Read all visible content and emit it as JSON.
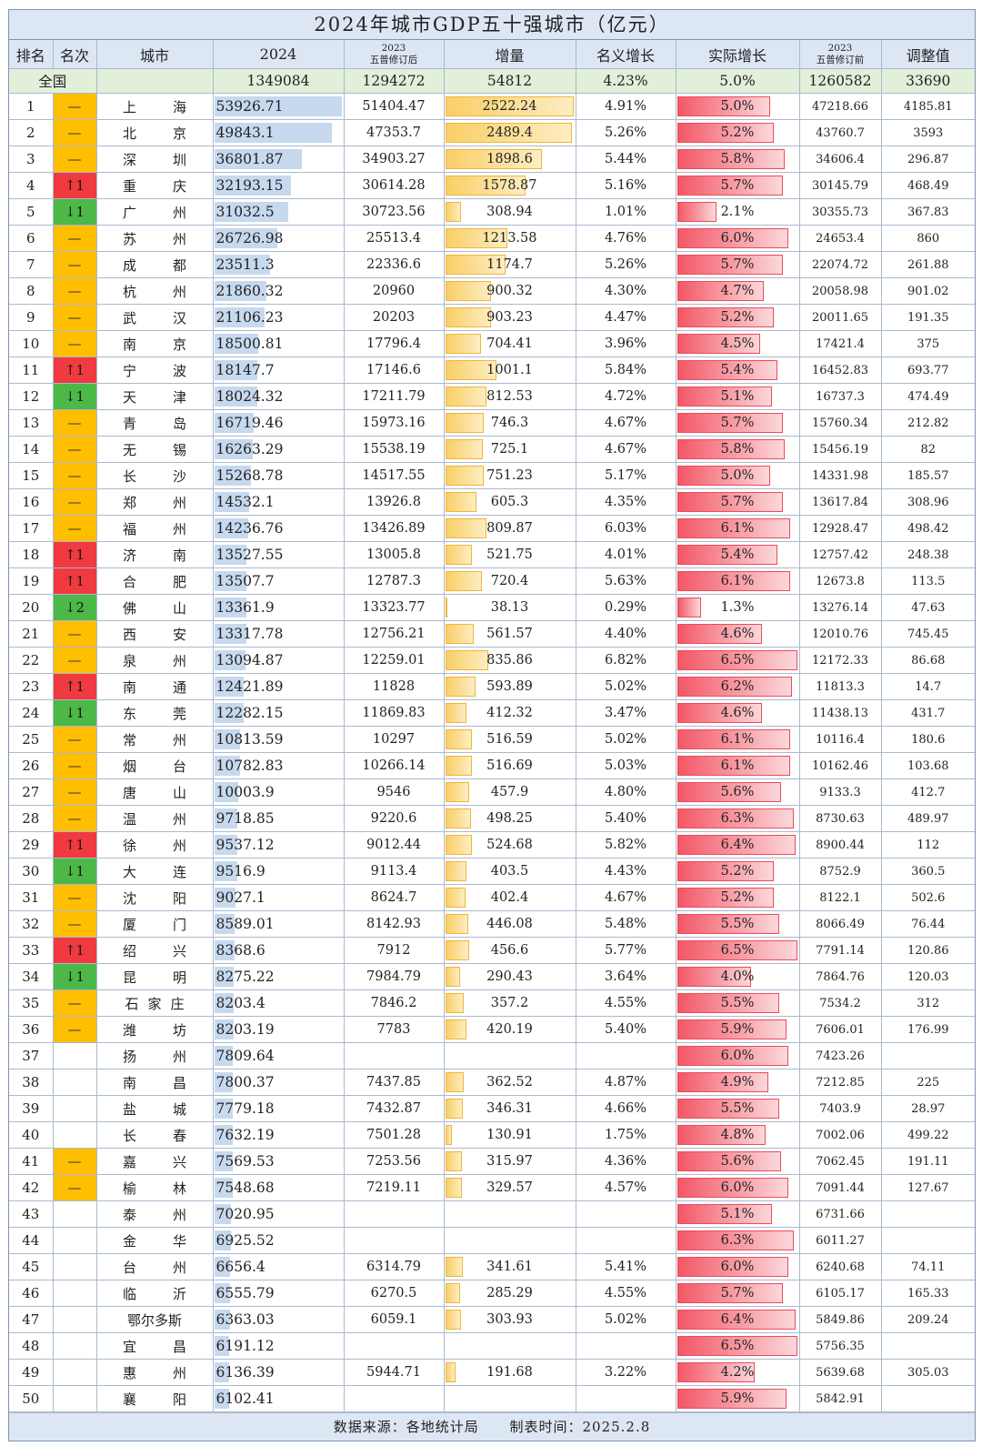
{
  "title": "2024年城市GDP五十强城市（亿元）",
  "headers": {
    "rank": "排名",
    "change": "名次",
    "city": "城市",
    "gdp2024": "2024",
    "rev2023_top": "2023",
    "rev2023_bottom": "五普修订后",
    "increase": "增量",
    "nominal": "名义增长",
    "real": "实际增长",
    "pre2023_top": "2023",
    "pre2023_bottom": "五普修订前",
    "adjust": "调整值"
  },
  "national": {
    "label": "全国",
    "gdp2024": "1349084",
    "rev2023": "1294272",
    "increase": "54812",
    "nominal": "4.23%",
    "real": "5.0%",
    "pre2023": "1260582",
    "adjust": "33690"
  },
  "colors": {
    "up": "#f03a3f",
    "down": "#4cb848",
    "same": "#ffbe00"
  },
  "rows": [
    {
      "rank": "1",
      "change": "—",
      "dir": "same",
      "city": "上海",
      "gdp2024": "53926.71",
      "rev2023": "51404.47",
      "increase": "2522.24",
      "nominal": "4.91%",
      "real": "5.0%",
      "pre2023": "47218.66",
      "adjust": "4185.81"
    },
    {
      "rank": "2",
      "change": "—",
      "dir": "same",
      "city": "北京",
      "gdp2024": "49843.1",
      "rev2023": "47353.7",
      "increase": "2489.4",
      "nominal": "5.26%",
      "real": "5.2%",
      "pre2023": "43760.7",
      "adjust": "3593"
    },
    {
      "rank": "3",
      "change": "—",
      "dir": "same",
      "city": "深圳",
      "gdp2024": "36801.87",
      "rev2023": "34903.27",
      "increase": "1898.6",
      "nominal": "5.44%",
      "real": "5.8%",
      "pre2023": "34606.4",
      "adjust": "296.87"
    },
    {
      "rank": "4",
      "change": "↑1",
      "dir": "up",
      "city": "重庆",
      "gdp2024": "32193.15",
      "rev2023": "30614.28",
      "increase": "1578.87",
      "nominal": "5.16%",
      "real": "5.7%",
      "pre2023": "30145.79",
      "adjust": "468.49"
    },
    {
      "rank": "5",
      "change": "↓1",
      "dir": "down",
      "city": "广州",
      "gdp2024": "31032.5",
      "rev2023": "30723.56",
      "increase": "308.94",
      "nominal": "1.01%",
      "real": "2.1%",
      "pre2023": "30355.73",
      "adjust": "367.83"
    },
    {
      "rank": "6",
      "change": "—",
      "dir": "same",
      "city": "苏州",
      "gdp2024": "26726.98",
      "rev2023": "25513.4",
      "increase": "1213.58",
      "nominal": "4.76%",
      "real": "6.0%",
      "pre2023": "24653.4",
      "adjust": "860"
    },
    {
      "rank": "7",
      "change": "—",
      "dir": "same",
      "city": "成都",
      "gdp2024": "23511.3",
      "rev2023": "22336.6",
      "increase": "1174.7",
      "nominal": "5.26%",
      "real": "5.7%",
      "pre2023": "22074.72",
      "adjust": "261.88"
    },
    {
      "rank": "8",
      "change": "—",
      "dir": "same",
      "city": "杭州",
      "gdp2024": "21860.32",
      "rev2023": "20960",
      "increase": "900.32",
      "nominal": "4.30%",
      "real": "4.7%",
      "pre2023": "20058.98",
      "adjust": "901.02"
    },
    {
      "rank": "9",
      "change": "—",
      "dir": "same",
      "city": "武汉",
      "gdp2024": "21106.23",
      "rev2023": "20203",
      "increase": "903.23",
      "nominal": "4.47%",
      "real": "5.2%",
      "pre2023": "20011.65",
      "adjust": "191.35"
    },
    {
      "rank": "10",
      "change": "—",
      "dir": "same",
      "city": "南京",
      "gdp2024": "18500.81",
      "rev2023": "17796.4",
      "increase": "704.41",
      "nominal": "3.96%",
      "real": "4.5%",
      "pre2023": "17421.4",
      "adjust": "375"
    },
    {
      "rank": "11",
      "change": "↑1",
      "dir": "up",
      "city": "宁波",
      "gdp2024": "18147.7",
      "rev2023": "17146.6",
      "increase": "1001.1",
      "nominal": "5.84%",
      "real": "5.4%",
      "pre2023": "16452.83",
      "adjust": "693.77"
    },
    {
      "rank": "12",
      "change": "↓1",
      "dir": "down",
      "city": "天津",
      "gdp2024": "18024.32",
      "rev2023": "17211.79",
      "increase": "812.53",
      "nominal": "4.72%",
      "real": "5.1%",
      "pre2023": "16737.3",
      "adjust": "474.49"
    },
    {
      "rank": "13",
      "change": "—",
      "dir": "same",
      "city": "青岛",
      "gdp2024": "16719.46",
      "rev2023": "15973.16",
      "increase": "746.3",
      "nominal": "4.67%",
      "real": "5.7%",
      "pre2023": "15760.34",
      "adjust": "212.82"
    },
    {
      "rank": "14",
      "change": "—",
      "dir": "same",
      "city": "无锡",
      "gdp2024": "16263.29",
      "rev2023": "15538.19",
      "increase": "725.1",
      "nominal": "4.67%",
      "real": "5.8%",
      "pre2023": "15456.19",
      "adjust": "82"
    },
    {
      "rank": "15",
      "change": "—",
      "dir": "same",
      "city": "长沙",
      "gdp2024": "15268.78",
      "rev2023": "14517.55",
      "increase": "751.23",
      "nominal": "5.17%",
      "real": "5.0%",
      "pre2023": "14331.98",
      "adjust": "185.57"
    },
    {
      "rank": "16",
      "change": "—",
      "dir": "same",
      "city": "郑州",
      "gdp2024": "14532.1",
      "rev2023": "13926.8",
      "increase": "605.3",
      "nominal": "4.35%",
      "real": "5.7%",
      "pre2023": "13617.84",
      "adjust": "308.96"
    },
    {
      "rank": "17",
      "change": "—",
      "dir": "same",
      "city": "福州",
      "gdp2024": "14236.76",
      "rev2023": "13426.89",
      "increase": "809.87",
      "nominal": "6.03%",
      "real": "6.1%",
      "pre2023": "12928.47",
      "adjust": "498.42"
    },
    {
      "rank": "18",
      "change": "↑1",
      "dir": "up",
      "city": "济南",
      "gdp2024": "13527.55",
      "rev2023": "13005.8",
      "increase": "521.75",
      "nominal": "4.01%",
      "real": "5.4%",
      "pre2023": "12757.42",
      "adjust": "248.38"
    },
    {
      "rank": "19",
      "change": "↑1",
      "dir": "up",
      "city": "合肥",
      "gdp2024": "13507.7",
      "rev2023": "12787.3",
      "increase": "720.4",
      "nominal": "5.63%",
      "real": "6.1%",
      "pre2023": "12673.8",
      "adjust": "113.5"
    },
    {
      "rank": "20",
      "change": "↓2",
      "dir": "down",
      "city": "佛山",
      "gdp2024": "13361.9",
      "rev2023": "13323.77",
      "increase": "38.13",
      "nominal": "0.29%",
      "real": "1.3%",
      "pre2023": "13276.14",
      "adjust": "47.63"
    },
    {
      "rank": "21",
      "change": "—",
      "dir": "same",
      "city": "西安",
      "gdp2024": "13317.78",
      "rev2023": "12756.21",
      "increase": "561.57",
      "nominal": "4.40%",
      "real": "4.6%",
      "pre2023": "12010.76",
      "adjust": "745.45"
    },
    {
      "rank": "22",
      "change": "—",
      "dir": "same",
      "city": "泉州",
      "gdp2024": "13094.87",
      "rev2023": "12259.01",
      "increase": "835.86",
      "nominal": "6.82%",
      "real": "6.5%",
      "pre2023": "12172.33",
      "adjust": "86.68"
    },
    {
      "rank": "23",
      "change": "↑1",
      "dir": "up",
      "city": "南通",
      "gdp2024": "12421.89",
      "rev2023": "11828",
      "increase": "593.89",
      "nominal": "5.02%",
      "real": "6.2%",
      "pre2023": "11813.3",
      "adjust": "14.7"
    },
    {
      "rank": "24",
      "change": "↓1",
      "dir": "down",
      "city": "东莞",
      "gdp2024": "12282.15",
      "rev2023": "11869.83",
      "increase": "412.32",
      "nominal": "3.47%",
      "real": "4.6%",
      "pre2023": "11438.13",
      "adjust": "431.7"
    },
    {
      "rank": "25",
      "change": "—",
      "dir": "same",
      "city": "常州",
      "gdp2024": "10813.59",
      "rev2023": "10297",
      "increase": "516.59",
      "nominal": "5.02%",
      "real": "6.1%",
      "pre2023": "10116.4",
      "adjust": "180.6"
    },
    {
      "rank": "26",
      "change": "—",
      "dir": "same",
      "city": "烟台",
      "gdp2024": "10782.83",
      "rev2023": "10266.14",
      "increase": "516.69",
      "nominal": "5.03%",
      "real": "6.1%",
      "pre2023": "10162.46",
      "adjust": "103.68"
    },
    {
      "rank": "27",
      "change": "—",
      "dir": "same",
      "city": "唐山",
      "gdp2024": "10003.9",
      "rev2023": "9546",
      "increase": "457.9",
      "nominal": "4.80%",
      "real": "5.6%",
      "pre2023": "9133.3",
      "adjust": "412.7"
    },
    {
      "rank": "28",
      "change": "—",
      "dir": "same",
      "city": "温州",
      "gdp2024": "9718.85",
      "rev2023": "9220.6",
      "increase": "498.25",
      "nominal": "5.40%",
      "real": "6.3%",
      "pre2023": "8730.63",
      "adjust": "489.97"
    },
    {
      "rank": "29",
      "change": "↑1",
      "dir": "up",
      "city": "徐州",
      "gdp2024": "9537.12",
      "rev2023": "9012.44",
      "increase": "524.68",
      "nominal": "5.82%",
      "real": "6.4%",
      "pre2023": "8900.44",
      "adjust": "112"
    },
    {
      "rank": "30",
      "change": "↓1",
      "dir": "down",
      "city": "大连",
      "gdp2024": "9516.9",
      "rev2023": "9113.4",
      "increase": "403.5",
      "nominal": "4.43%",
      "real": "5.2%",
      "pre2023": "8752.9",
      "adjust": "360.5"
    },
    {
      "rank": "31",
      "change": "—",
      "dir": "same",
      "city": "沈阳",
      "gdp2024": "9027.1",
      "rev2023": "8624.7",
      "increase": "402.4",
      "nominal": "4.67%",
      "real": "5.2%",
      "pre2023": "8122.1",
      "adjust": "502.6"
    },
    {
      "rank": "32",
      "change": "—",
      "dir": "same",
      "city": "厦门",
      "gdp2024": "8589.01",
      "rev2023": "8142.93",
      "increase": "446.08",
      "nominal": "5.48%",
      "real": "5.5%",
      "pre2023": "8066.49",
      "adjust": "76.44"
    },
    {
      "rank": "33",
      "change": "↑1",
      "dir": "up",
      "city": "绍兴",
      "gdp2024": "8368.6",
      "rev2023": "7912",
      "increase": "456.6",
      "nominal": "5.77%",
      "real": "6.5%",
      "pre2023": "7791.14",
      "adjust": "120.86"
    },
    {
      "rank": "34",
      "change": "↓1",
      "dir": "down",
      "city": "昆明",
      "gdp2024": "8275.22",
      "rev2023": "7984.79",
      "increase": "290.43",
      "nominal": "3.64%",
      "real": "4.0%",
      "pre2023": "7864.76",
      "adjust": "120.03"
    },
    {
      "rank": "35",
      "change": "—",
      "dir": "same",
      "city": "石家庄",
      "gdp2024": "8203.4",
      "rev2023": "7846.2",
      "increase": "357.2",
      "nominal": "4.55%",
      "real": "5.5%",
      "pre2023": "7534.2",
      "adjust": "312"
    },
    {
      "rank": "36",
      "change": "—",
      "dir": "same",
      "city": "潍坊",
      "gdp2024": "8203.19",
      "rev2023": "7783",
      "increase": "420.19",
      "nominal": "5.40%",
      "real": "5.9%",
      "pre2023": "7606.01",
      "adjust": "176.99"
    },
    {
      "rank": "37",
      "change": "",
      "dir": "none",
      "city": "扬州",
      "gdp2024": "7809.64",
      "rev2023": "",
      "increase": "",
      "nominal": "",
      "real": "6.0%",
      "pre2023": "7423.26",
      "adjust": ""
    },
    {
      "rank": "38",
      "change": "",
      "dir": "none",
      "city": "南昌",
      "gdp2024": "7800.37",
      "rev2023": "7437.85",
      "increase": "362.52",
      "nominal": "4.87%",
      "real": "4.9%",
      "pre2023": "7212.85",
      "adjust": "225"
    },
    {
      "rank": "39",
      "change": "",
      "dir": "none",
      "city": "盐城",
      "gdp2024": "7779.18",
      "rev2023": "7432.87",
      "increase": "346.31",
      "nominal": "4.66%",
      "real": "5.5%",
      "pre2023": "7403.9",
      "adjust": "28.97"
    },
    {
      "rank": "40",
      "change": "",
      "dir": "none",
      "city": "长春",
      "gdp2024": "7632.19",
      "rev2023": "7501.28",
      "increase": "130.91",
      "nominal": "1.75%",
      "real": "4.8%",
      "pre2023": "7002.06",
      "adjust": "499.22"
    },
    {
      "rank": "41",
      "change": "—",
      "dir": "same",
      "city": "嘉兴",
      "gdp2024": "7569.53",
      "rev2023": "7253.56",
      "increase": "315.97",
      "nominal": "4.36%",
      "real": "5.6%",
      "pre2023": "7062.45",
      "adjust": "191.11"
    },
    {
      "rank": "42",
      "change": "—",
      "dir": "same",
      "city": "榆林",
      "gdp2024": "7548.68",
      "rev2023": "7219.11",
      "increase": "329.57",
      "nominal": "4.57%",
      "real": "6.0%",
      "pre2023": "7091.44",
      "adjust": "127.67"
    },
    {
      "rank": "43",
      "change": "",
      "dir": "none",
      "city": "泰州",
      "gdp2024": "7020.95",
      "rev2023": "",
      "increase": "",
      "nominal": "",
      "real": "5.1%",
      "pre2023": "6731.66",
      "adjust": ""
    },
    {
      "rank": "44",
      "change": "",
      "dir": "none",
      "city": "金华",
      "gdp2024": "6925.52",
      "rev2023": "",
      "increase": "",
      "nominal": "",
      "real": "6.3%",
      "pre2023": "6011.27",
      "adjust": ""
    },
    {
      "rank": "45",
      "change": "",
      "dir": "none",
      "city": "台州",
      "gdp2024": "6656.4",
      "rev2023": "6314.79",
      "increase": "341.61",
      "nominal": "5.41%",
      "real": "6.0%",
      "pre2023": "6240.68",
      "adjust": "74.11"
    },
    {
      "rank": "46",
      "change": "",
      "dir": "none",
      "city": "临沂",
      "gdp2024": "6555.79",
      "rev2023": "6270.5",
      "increase": "285.29",
      "nominal": "4.55%",
      "real": "5.7%",
      "pre2023": "6105.17",
      "adjust": "165.33"
    },
    {
      "rank": "47",
      "change": "",
      "dir": "none",
      "city": "鄂尔多斯",
      "gdp2024": "6363.03",
      "rev2023": "6059.1",
      "increase": "303.93",
      "nominal": "5.02%",
      "real": "6.4%",
      "pre2023": "5849.86",
      "adjust": "209.24"
    },
    {
      "rank": "48",
      "change": "",
      "dir": "none",
      "city": "宜昌",
      "gdp2024": "6191.12",
      "rev2023": "",
      "increase": "",
      "nominal": "",
      "real": "6.5%",
      "pre2023": "5756.35",
      "adjust": ""
    },
    {
      "rank": "49",
      "change": "",
      "dir": "none",
      "city": "惠州",
      "gdp2024": "6136.39",
      "rev2023": "5944.71",
      "increase": "191.68",
      "nominal": "3.22%",
      "real": "4.2%",
      "pre2023": "5639.68",
      "adjust": "305.03"
    },
    {
      "rank": "50",
      "change": "",
      "dir": "none",
      "city": "襄阳",
      "gdp2024": "6102.41",
      "rev2023": "",
      "increase": "",
      "nominal": "",
      "real": "5.9%",
      "pre2023": "5842.91",
      "adjust": ""
    }
  ],
  "footer": {
    "source": "数据来源：各地统计局",
    "date": "制表时间：2025.2.8"
  }
}
